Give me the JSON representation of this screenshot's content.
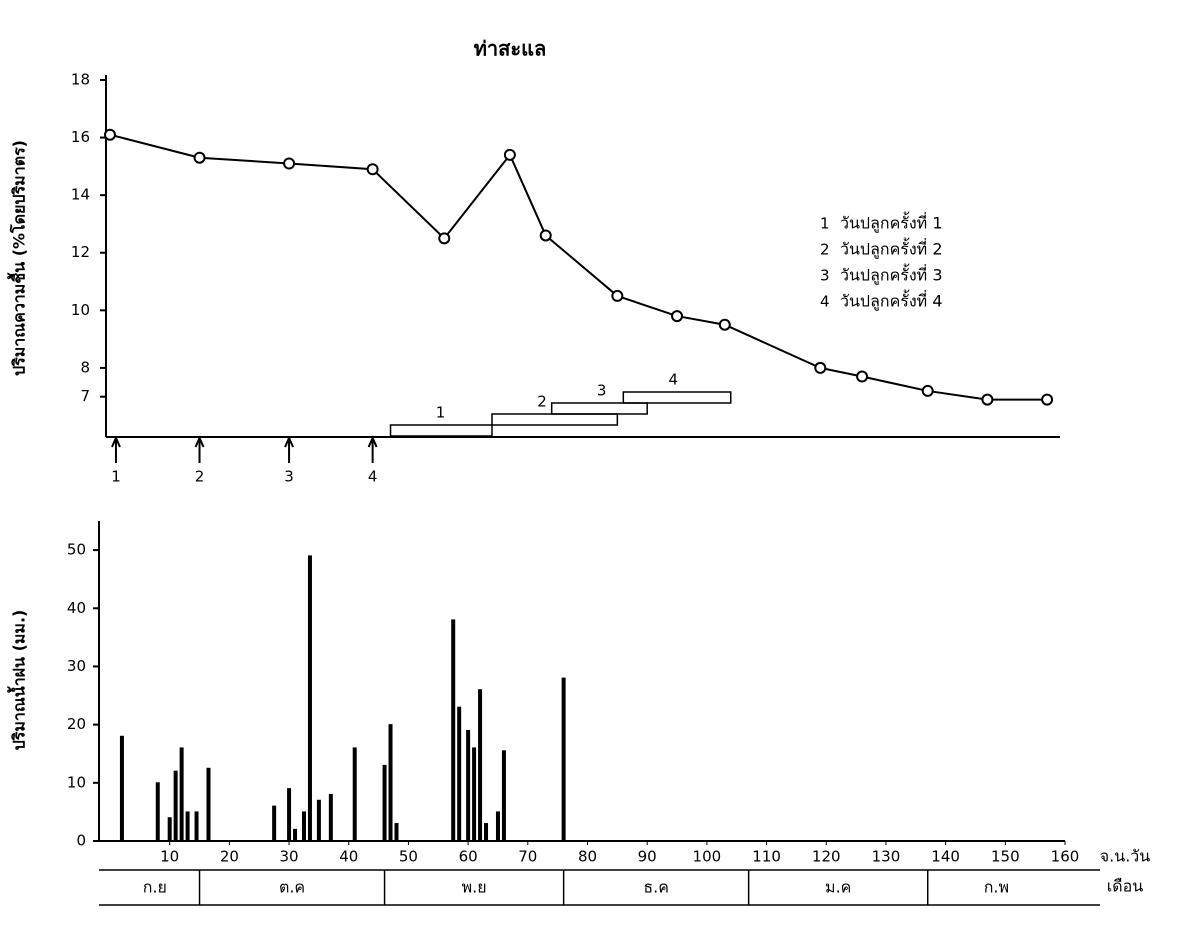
{
  "chart_data": [
    {
      "type": "line",
      "title": "ท่าสะแล",
      "y_label": "ปริมาณความชื้น (%โดยปริมาตร)",
      "x": [
        0,
        15,
        30,
        44,
        56,
        67,
        73,
        85,
        95,
        103,
        119,
        126,
        137,
        147,
        157
      ],
      "values": [
        16.1,
        15.3,
        15.1,
        14.9,
        12.5,
        15.4,
        12.6,
        10.5,
        9.8,
        9.5,
        8.0,
        7.7,
        7.2,
        6.9,
        6.9
      ],
      "color": "#000000",
      "xlim": [
        0,
        160
      ],
      "ylim": [
        5.6,
        18
      ],
      "yticks": [
        7,
        8,
        10,
        12,
        14,
        16,
        18
      ],
      "planting": {
        "x": [
          1,
          15,
          30,
          44
        ],
        "labels": [
          "1",
          "2",
          "3",
          "4"
        ]
      },
      "periods": [
        {
          "label": "1",
          "start": 47,
          "end": 64
        },
        {
          "label": "2",
          "start": 64,
          "end": 85
        },
        {
          "label": "3",
          "start": 74,
          "end": 90
        },
        {
          "label": "4",
          "start": 86,
          "end": 104
        }
      ],
      "legend": [
        {
          "key": "1",
          "text": "วันปลูกครั้งที่ 1"
        },
        {
          "key": "2",
          "text": "วันปลูกครั้งที่ 2"
        },
        {
          "key": "3",
          "text": "วันปลูกครั้งที่ 3"
        },
        {
          "key": "4",
          "text": "วันปลูกครั้งที่ 4"
        }
      ]
    },
    {
      "type": "bar",
      "y_label": "ปริมาณน้ำฝน (มม.)",
      "x_label": "จ.น.วัน",
      "month_label": "เดือน",
      "x": [
        2,
        8,
        10,
        11,
        12,
        13,
        14.5,
        16.5,
        27.5,
        30,
        31,
        32.5,
        33.5,
        35,
        37,
        41,
        46,
        47,
        48,
        57.5,
        58.5,
        60,
        61,
        62,
        63,
        65,
        66,
        76
      ],
      "values": [
        18,
        10,
        4,
        12,
        16,
        5,
        5,
        12.5,
        6,
        9,
        2,
        5,
        49,
        7,
        8,
        16,
        13,
        20,
        3,
        38,
        23,
        19,
        16,
        26,
        3,
        5,
        15.5,
        28
      ],
      "color": "#000000",
      "xlim": [
        0,
        160
      ],
      "xticks": [
        10,
        20,
        30,
        40,
        50,
        60,
        70,
        80,
        90,
        100,
        110,
        120,
        130,
        140,
        150,
        160
      ],
      "ylim": [
        0,
        55
      ],
      "yticks": [
        0,
        10,
        20,
        30,
        40,
        50
      ],
      "months": [
        "ก.ย",
        "ต.ค",
        "พ.ย",
        "ธ.ค",
        "ม.ค",
        "ก.พ"
      ],
      "month_bounds": [
        0,
        15,
        46,
        76,
        107,
        137,
        160
      ]
    }
  ]
}
